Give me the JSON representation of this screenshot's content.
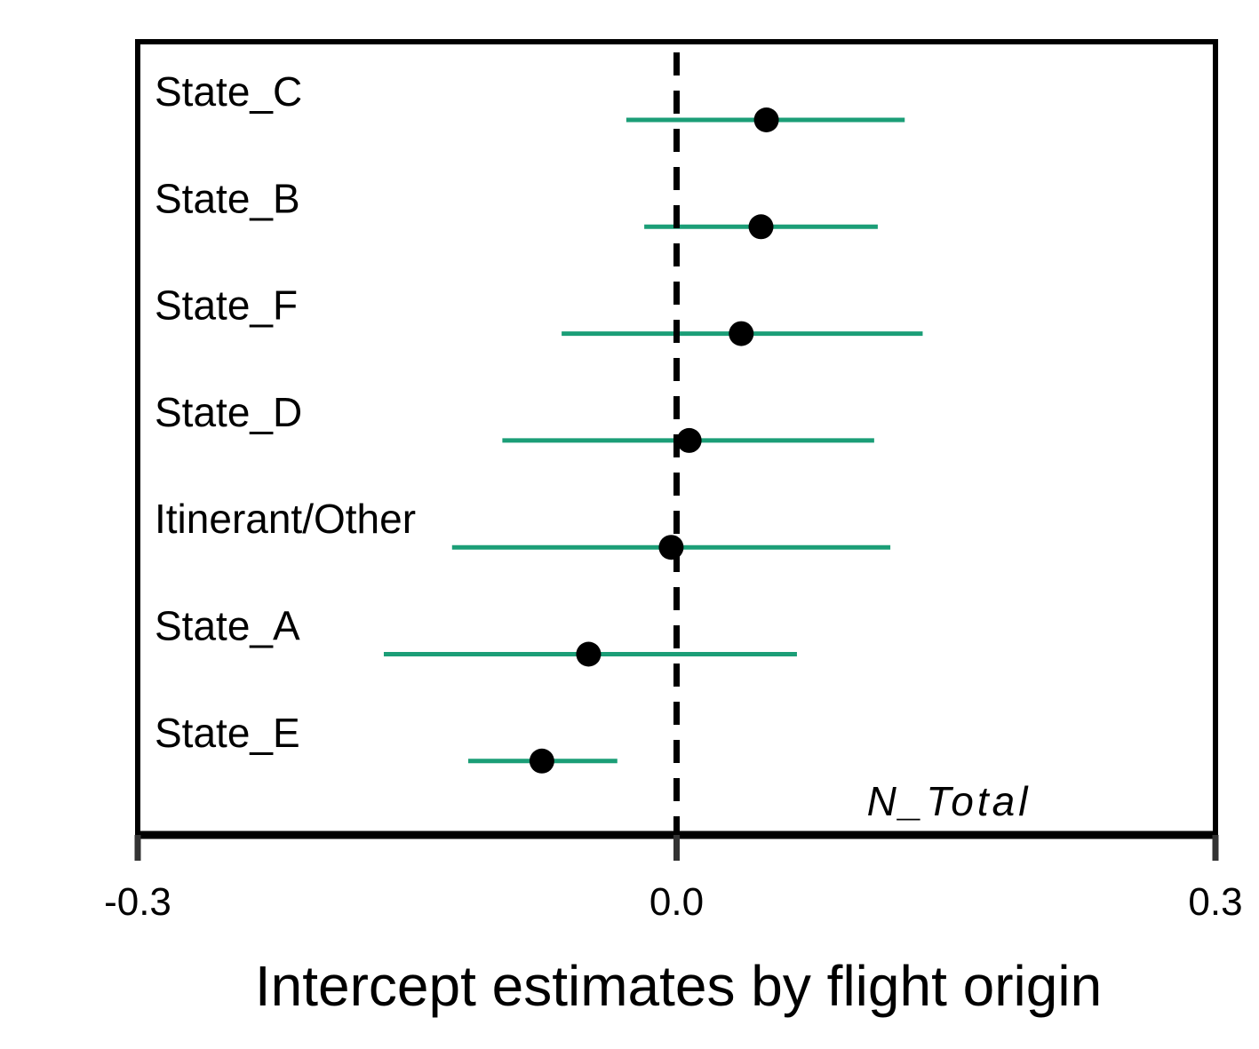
{
  "chart_data": {
    "type": "forest",
    "panel_label": "N_Total",
    "xlabel": "Intercept estimates by flight origin",
    "xlim": [
      -0.3,
      0.3
    ],
    "x_ticks": [
      "-0.3",
      "0.0",
      "0.3"
    ],
    "reference_line": 0.0,
    "colors": {
      "interval": "#1b9e77",
      "point": "#000000",
      "frame": "#000000"
    },
    "rows": [
      {
        "category": "State_C",
        "estimate": 0.05,
        "lower": -0.028,
        "upper": 0.127
      },
      {
        "category": "State_B",
        "estimate": 0.047,
        "lower": -0.018,
        "upper": 0.112
      },
      {
        "category": "State_F",
        "estimate": 0.036,
        "lower": -0.064,
        "upper": 0.137
      },
      {
        "category": "State_D",
        "estimate": 0.007,
        "lower": -0.097,
        "upper": 0.11
      },
      {
        "category": "Itinerant/Other",
        "estimate": -0.003,
        "lower": -0.125,
        "upper": 0.119
      },
      {
        "category": "State_A",
        "estimate": -0.049,
        "lower": -0.163,
        "upper": 0.067
      },
      {
        "category": "State_E",
        "estimate": -0.075,
        "lower": -0.116,
        "upper": -0.033
      }
    ]
  }
}
